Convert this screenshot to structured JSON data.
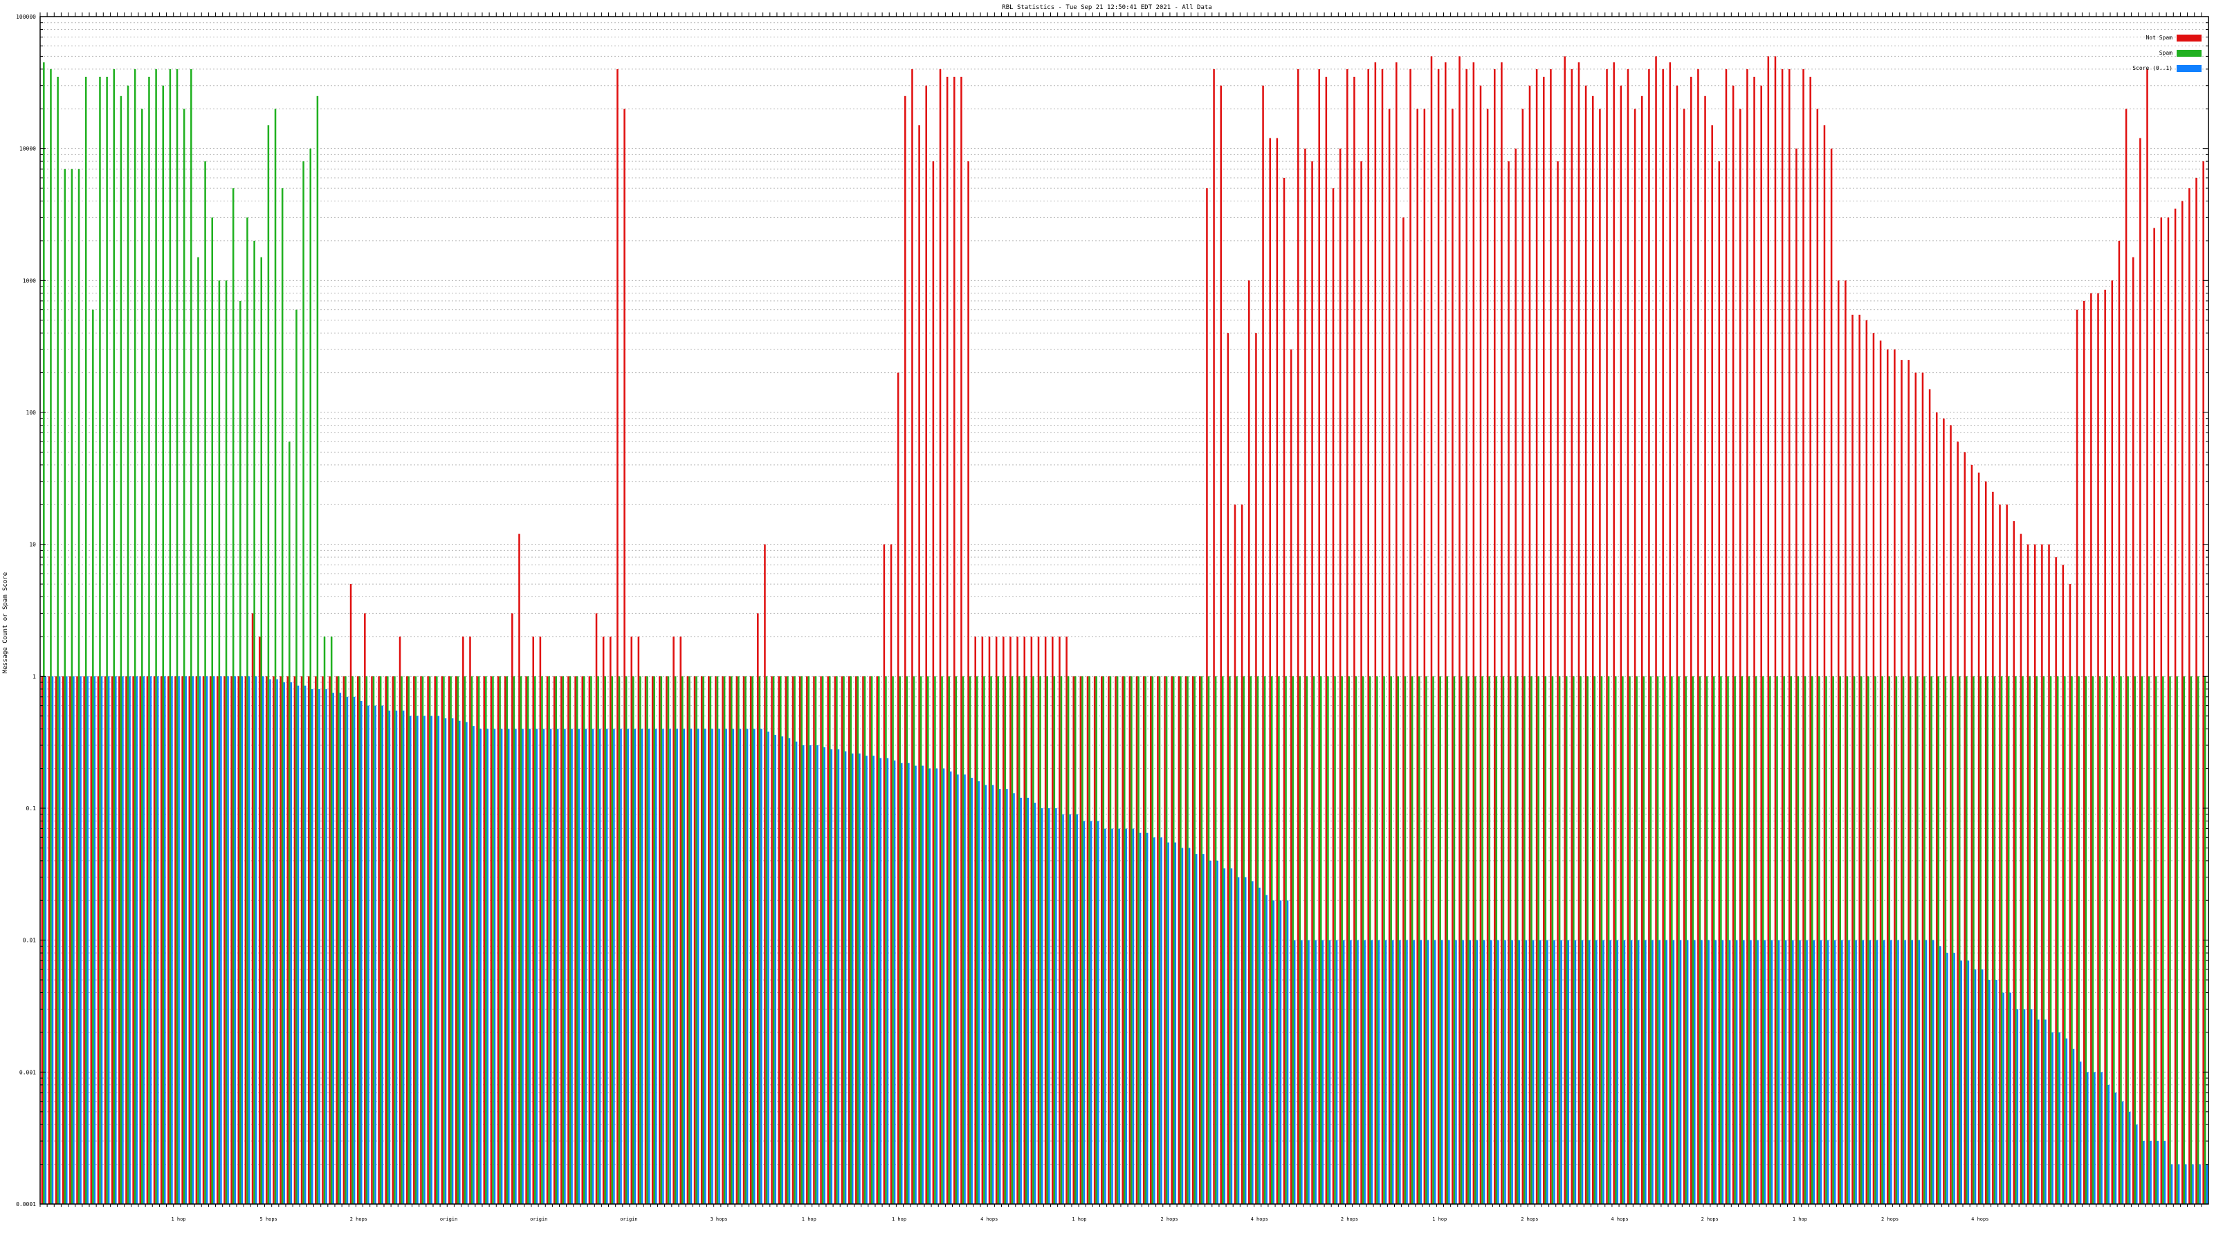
{
  "chart_data": {
    "type": "bar",
    "title": "RBL Statistics - Tue Sep 21 12:50:41 EDT 2021 - All Data",
    "xlabel": "",
    "ylabel": "Message Count or Spam Score",
    "y_scale": "log",
    "ylim": [
      0.0001,
      100000
    ],
    "y_ticks": [
      "0.0001",
      "0.001",
      "0.01",
      "0.1",
      "1",
      "10",
      "100",
      "1000",
      "10000",
      "100000"
    ],
    "grid": true,
    "legend_position": "top-right",
    "series": [
      {
        "name": "Not Spam",
        "color": "#e01010",
        "values": [
          1,
          1,
          1,
          1,
          1,
          1,
          1,
          1,
          1,
          1,
          1,
          1,
          1,
          1,
          1,
          1,
          1,
          1,
          1,
          1,
          1,
          1,
          1,
          1,
          1,
          1,
          1,
          1,
          1,
          1,
          3,
          2,
          1,
          1,
          1,
          1,
          1,
          1,
          1,
          1,
          1,
          1,
          1,
          1,
          5,
          1,
          3,
          1,
          1,
          1,
          1,
          2,
          1,
          1,
          1,
          1,
          1,
          1,
          1,
          1,
          2,
          2,
          1,
          1,
          1,
          1,
          1,
          3,
          12,
          1,
          2,
          2,
          1,
          1,
          1,
          1,
          1,
          1,
          1,
          3,
          2,
          2,
          40000,
          20000,
          2,
          2,
          1,
          1,
          1,
          1,
          2,
          2,
          1,
          1,
          1,
          1,
          1,
          1,
          1,
          1,
          1,
          1,
          3,
          10,
          1,
          1,
          1,
          1,
          1,
          1,
          1,
          1,
          1,
          1,
          1,
          1,
          1,
          1,
          1,
          1,
          10,
          10,
          200,
          25000,
          40000,
          15000,
          30000,
          8000,
          40000,
          35000,
          35000,
          35000,
          8000,
          2,
          2,
          2,
          2,
          2,
          2,
          2,
          2,
          2,
          2,
          2,
          2,
          2,
          2,
          1,
          1,
          1,
          1,
          1,
          1,
          1,
          1,
          1,
          1,
          1,
          1,
          1,
          1,
          1,
          1,
          1,
          1,
          1,
          5000,
          40000,
          30000,
          400,
          20,
          20,
          1000,
          400,
          30000,
          12000,
          12000,
          6000,
          300,
          40000,
          10000,
          8000,
          40000,
          35000,
          5000,
          10000,
          40000,
          35000,
          8000,
          40000,
          45000,
          40000,
          20000,
          45000,
          3000,
          40000,
          20000,
          20000,
          50000,
          40000,
          45000,
          20000,
          50000,
          40000,
          45000,
          30000,
          20000,
          40000,
          45000,
          8000,
          10000,
          20000,
          30000,
          40000,
          35000,
          40000,
          8000,
          50000,
          40000,
          45000,
          30000,
          25000,
          20000,
          40000,
          45000,
          30000,
          40000,
          20000,
          25000,
          40000,
          50000,
          40000,
          45000,
          30000,
          20000,
          35000,
          40000,
          25000,
          15000,
          8000,
          40000,
          30000,
          20000,
          40000,
          35000,
          30000,
          50000,
          50000,
          40000,
          40000,
          10000,
          40000,
          35000,
          20000,
          15000,
          10000,
          1000,
          1000,
          550,
          550,
          500,
          400,
          350,
          300,
          300,
          250,
          250,
          200,
          200,
          150,
          100,
          90,
          80,
          60,
          50,
          40,
          35,
          30,
          25,
          20,
          20,
          15,
          12,
          10,
          10,
          10,
          10,
          8,
          7,
          5,
          600,
          700,
          800,
          800,
          850,
          1000,
          2000,
          20000,
          1500,
          12000,
          40000,
          2500,
          3000,
          3000,
          3500,
          4000,
          5000,
          6000,
          8000
        ]
      },
      {
        "name": "Spam",
        "color": "#20b020",
        "values": [
          45000,
          40000,
          35000,
          7000,
          7000,
          7000,
          35000,
          600,
          35000,
          35000,
          40000,
          25000,
          30000,
          40000,
          20000,
          35000,
          40000,
          30000,
          40000,
          40000,
          20000,
          40000,
          1500,
          8000,
          3000,
          1000,
          1000,
          5000,
          700,
          3000,
          2000,
          1500,
          15000,
          20000,
          5000,
          60,
          600,
          8000,
          10000,
          25000,
          2,
          2,
          1,
          1,
          1,
          1,
          1,
          1,
          1,
          1,
          1,
          1,
          1,
          1,
          1,
          1,
          1,
          1,
          1,
          1,
          1,
          1,
          1,
          1,
          1,
          1,
          1,
          1,
          1,
          1,
          1,
          1,
          1,
          1,
          1,
          1,
          1,
          1,
          1,
          1,
          1,
          1,
          1,
          1,
          1,
          1,
          1,
          1,
          1,
          1,
          1,
          1,
          1,
          1,
          1,
          1,
          1,
          1,
          1,
          1,
          1,
          1,
          1,
          1,
          1,
          1,
          1,
          1,
          1,
          1,
          1,
          1,
          1,
          1,
          1,
          1,
          1,
          1,
          1,
          1,
          1,
          1,
          1,
          1,
          1,
          1,
          1,
          1,
          1,
          1,
          1,
          1,
          1,
          1,
          1,
          1,
          1,
          1,
          1,
          1,
          1,
          1,
          1,
          1,
          1,
          1,
          1,
          1,
          1,
          1,
          1,
          1,
          1,
          1,
          1,
          1,
          1,
          1,
          1,
          1,
          1,
          1,
          1,
          1,
          1,
          1,
          1,
          1,
          1,
          1,
          1,
          1,
          1,
          1,
          1,
          1,
          1,
          1,
          1,
          1,
          1,
          1,
          1,
          1,
          1,
          1,
          1,
          1,
          1,
          1,
          1,
          1,
          1,
          1,
          1,
          1,
          1,
          1,
          1,
          1,
          1,
          1,
          1,
          1,
          1,
          1,
          1,
          1,
          1,
          1,
          1,
          1,
          1,
          1,
          1,
          1,
          1,
          1,
          1,
          1,
          1,
          1,
          1,
          1,
          1,
          1,
          1,
          1,
          1,
          1,
          1,
          1,
          1,
          1,
          1,
          1,
          1,
          1,
          1,
          1,
          1,
          1,
          1,
          1,
          1,
          1,
          1,
          1,
          1,
          1,
          1,
          1,
          1,
          1,
          1,
          1,
          1,
          1,
          1,
          1,
          1,
          1,
          1,
          1,
          1,
          1,
          1,
          1,
          1,
          1,
          1,
          1,
          1,
          1,
          1,
          1,
          1,
          1,
          1,
          1,
          1,
          1,
          1,
          1,
          1,
          1,
          1,
          1,
          1,
          1,
          1,
          1,
          1,
          1,
          1,
          1,
          1,
          1,
          1,
          1,
          1,
          1,
          1,
          1,
          1,
          1,
          1,
          1,
          1
        ]
      },
      {
        "name": "Score (0..1)",
        "color": "#1080ff",
        "values": [
          1,
          1,
          1,
          1,
          1,
          1,
          1,
          1,
          1,
          1,
          1,
          1,
          1,
          1,
          1,
          1,
          1,
          1,
          1,
          1,
          1,
          1,
          1,
          1,
          1,
          1,
          1,
          1,
          1,
          1,
          1,
          1,
          0.95,
          0.95,
          0.9,
          0.9,
          0.85,
          0.85,
          0.8,
          0.8,
          0.8,
          0.75,
          0.75,
          0.7,
          0.7,
          0.65,
          0.6,
          0.6,
          0.6,
          0.55,
          0.55,
          0.55,
          0.5,
          0.5,
          0.5,
          0.5,
          0.5,
          0.48,
          0.48,
          0.46,
          0.45,
          0.42,
          0.4,
          0.4,
          0.4,
          0.4,
          0.4,
          0.4,
          0.4,
          0.4,
          0.4,
          0.4,
          0.4,
          0.4,
          0.4,
          0.4,
          0.4,
          0.4,
          0.4,
          0.4,
          0.4,
          0.4,
          0.4,
          0.4,
          0.4,
          0.4,
          0.4,
          0.4,
          0.4,
          0.4,
          0.4,
          0.4,
          0.4,
          0.4,
          0.4,
          0.4,
          0.4,
          0.4,
          0.4,
          0.4,
          0.4,
          0.4,
          0.4,
          0.38,
          0.36,
          0.35,
          0.34,
          0.32,
          0.3,
          0.3,
          0.3,
          0.29,
          0.28,
          0.28,
          0.27,
          0.26,
          0.26,
          0.25,
          0.25,
          0.24,
          0.24,
          0.23,
          0.22,
          0.22,
          0.21,
          0.21,
          0.2,
          0.2,
          0.2,
          0.19,
          0.18,
          0.18,
          0.17,
          0.16,
          0.15,
          0.15,
          0.14,
          0.14,
          0.13,
          0.12,
          0.12,
          0.11,
          0.1,
          0.1,
          0.1,
          0.09,
          0.09,
          0.09,
          0.08,
          0.08,
          0.08,
          0.07,
          0.07,
          0.07,
          0.07,
          0.07,
          0.065,
          0.065,
          0.06,
          0.06,
          0.055,
          0.055,
          0.05,
          0.05,
          0.045,
          0.045,
          0.04,
          0.04,
          0.035,
          0.035,
          0.03,
          0.03,
          0.028,
          0.025,
          0.022,
          0.02,
          0.02,
          0.02,
          0.01,
          0.01,
          0.01,
          0.01,
          0.01,
          0.01,
          0.01,
          0.01,
          0.01,
          0.01,
          0.01,
          0.01,
          0.01,
          0.01,
          0.01,
          0.01,
          0.01,
          0.01,
          0.01,
          0.01,
          0.01,
          0.01,
          0.01,
          0.01,
          0.01,
          0.01,
          0.01,
          0.01,
          0.01,
          0.01,
          0.01,
          0.01,
          0.01,
          0.01,
          0.01,
          0.01,
          0.01,
          0.01,
          0.01,
          0.01,
          0.01,
          0.01,
          0.01,
          0.01,
          0.01,
          0.01,
          0.01,
          0.01,
          0.01,
          0.01,
          0.01,
          0.01,
          0.01,
          0.01,
          0.01,
          0.01,
          0.01,
          0.01,
          0.01,
          0.01,
          0.01,
          0.01,
          0.01,
          0.01,
          0.01,
          0.01,
          0.01,
          0.01,
          0.01,
          0.01,
          0.01,
          0.01,
          0.01,
          0.01,
          0.01,
          0.01,
          0.01,
          0.01,
          0.01,
          0.01,
          0.01,
          0.01,
          0.01,
          0.01,
          0.01,
          0.01,
          0.01,
          0.01,
          0.01,
          0.01,
          0.01,
          0.01,
          0.009,
          0.008,
          0.008,
          0.007,
          0.007,
          0.006,
          0.006,
          0.005,
          0.005,
          0.004,
          0.004,
          0.003,
          0.003,
          0.003,
          0.0025,
          0.0025,
          0.002,
          0.002,
          0.0018,
          0.0015,
          0.0012,
          0.001,
          0.001,
          0.001,
          0.0008,
          0.0007,
          0.0006,
          0.0005,
          0.0004,
          0.0003,
          0.0003,
          0.0003,
          0.0003,
          0.0002,
          0.0002,
          0.0002,
          0.0002,
          0.0002,
          0.0002
        ]
      }
    ],
    "group_labels": [
      "1 hop",
      "5 hops",
      "2 hops",
      "origin",
      "origin",
      "origin",
      "3 hops",
      "1 hop",
      "1 hop",
      "4 hops",
      "1 hop",
      "2 hops",
      "4 hops",
      "2 hops",
      "1 hop",
      "2 hops",
      "4 hops",
      "2 hops",
      "1 hop",
      "2 hops",
      "4 hops"
    ]
  }
}
